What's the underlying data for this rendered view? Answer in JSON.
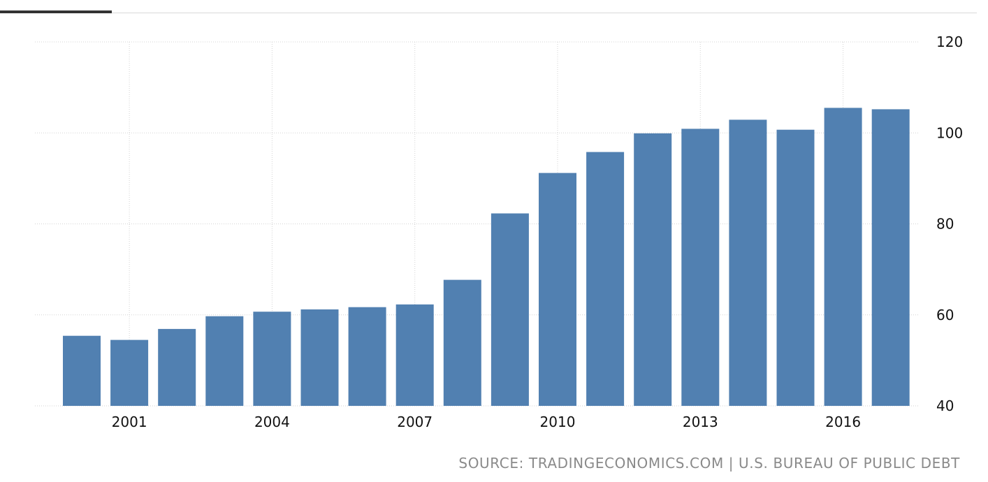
{
  "chart_data": {
    "type": "bar",
    "title": "",
    "xlabel": "",
    "ylabel": "",
    "categories": [
      "2000",
      "2001",
      "2002",
      "2003",
      "2004",
      "2005",
      "2006",
      "2007",
      "2008",
      "2009",
      "2010",
      "2011",
      "2012",
      "2013",
      "2014",
      "2015",
      "2016",
      "2017"
    ],
    "values": [
      55.4,
      54.5,
      56.9,
      59.7,
      60.7,
      61.2,
      61.7,
      62.3,
      67.7,
      82.3,
      91.2,
      95.8,
      99.9,
      100.9,
      102.9,
      100.7,
      105.5,
      105.2
    ],
    "x_tick_labels": [
      "2001",
      "2004",
      "2007",
      "2010",
      "2013",
      "2016"
    ],
    "y_tick_labels": [
      "40",
      "60",
      "80",
      "100",
      "120"
    ],
    "y_ticks": [
      40,
      60,
      80,
      100,
      120
    ],
    "ylim": [
      40,
      120
    ],
    "y_axis_side": "right",
    "grid": true,
    "bar_color": "#5180b1",
    "grid_color": "#d3d3d3"
  },
  "source": {
    "text": "SOURCE: TRADINGECONOMICS.COM | U.S. BUREAU OF PUBLIC DEBT"
  },
  "colors": {
    "tab_indicator": "#333333",
    "source_text": "#8a8a8a"
  }
}
